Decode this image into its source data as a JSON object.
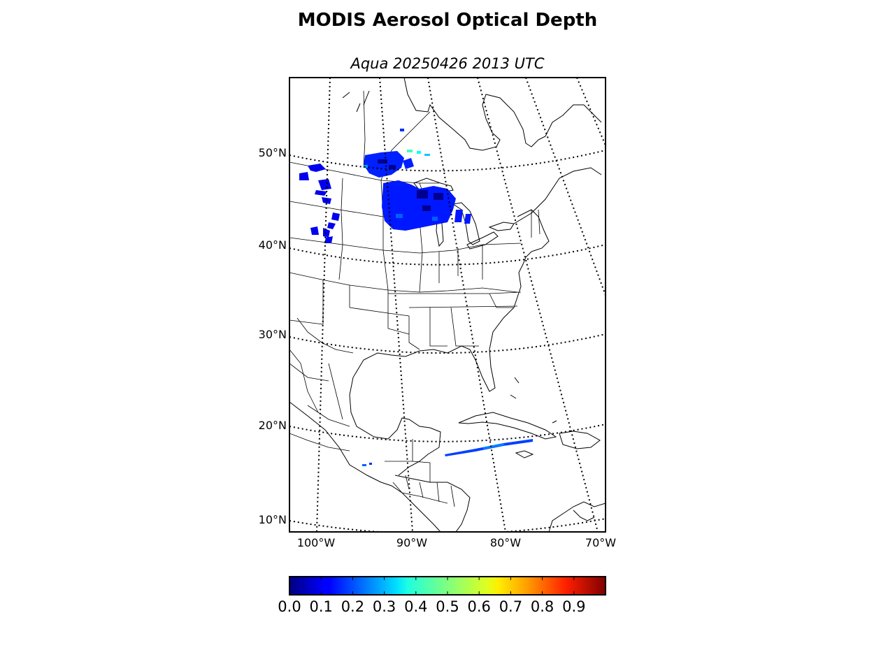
{
  "title": "MODIS Aerosol Optical Depth",
  "subtitle": "Aqua 20250426 2013 UTC",
  "map": {
    "latitude_labels": [
      "50°N",
      "40°N",
      "30°N",
      "20°N",
      "10°N"
    ],
    "longitude_labels": [
      "100°W",
      "90°W",
      "80°W",
      "70°W"
    ],
    "graticule_style": "dotted",
    "projection": "conic",
    "region": "Central/Eastern North America, Gulf of Mexico and Caribbean",
    "aod_swaths": [
      {
        "area": "Montana/Wyoming",
        "value_range": [
          0.0,
          0.2
        ],
        "color": "#0000ff"
      },
      {
        "area": "Dakotas/Manitoba border",
        "value_range": [
          0.0,
          0.35
        ],
        "color": "#0010ff"
      },
      {
        "area": "Minnesota/Lake Superior",
        "value_range": [
          0.0,
          0.3
        ],
        "color": "#0020ff"
      },
      {
        "area": "Caribbean strip south of Cuba",
        "value_range": [
          0.1,
          0.3
        ],
        "color": "#0040ff"
      }
    ]
  },
  "colorbar": {
    "colormap": "jet",
    "min": 0.0,
    "max": 1.0,
    "tick_labels": [
      "0.0",
      "0.1",
      "0.2",
      "0.3",
      "0.4",
      "0.5",
      "0.6",
      "0.7",
      "0.8",
      "0.9"
    ]
  }
}
